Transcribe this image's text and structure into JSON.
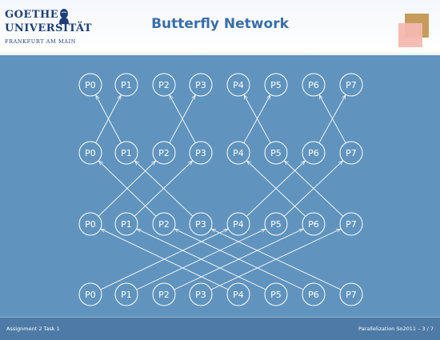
{
  "header": {
    "title": "Butterfly Network",
    "logo": {
      "line1": "GOETHE",
      "line2": "UNIVERSITÄT",
      "line3": "FRANKFURT AM MAIN",
      "icon": "goethe-portrait-icon"
    },
    "accent_colors": [
      "#c69c5a",
      "#f4b8b0"
    ]
  },
  "footer": {
    "left": "Assignment 2 Task 1",
    "right": "Parallelization So2011 – 3 / 7"
  },
  "diagram": {
    "type": "butterfly-network",
    "rows": [
      {
        "nodes": [
          "P0",
          "P1",
          "P2",
          "P3",
          "P4",
          "P5",
          "P6",
          "P7"
        ]
      },
      {
        "nodes": [
          "P0",
          "P1",
          "P2",
          "P3",
          "P4",
          "P5",
          "P6",
          "P7"
        ]
      },
      {
        "nodes": [
          "P0",
          "P1",
          "P2",
          "P3",
          "P4",
          "P5",
          "P6",
          "P7"
        ]
      },
      {
        "nodes": [
          "P0",
          "P1",
          "P2",
          "P3",
          "P4",
          "P5",
          "P6",
          "P7"
        ]
      }
    ],
    "stages": [
      {
        "between_rows": [
          3,
          2
        ],
        "partner_distance": 4
      },
      {
        "between_rows": [
          2,
          1
        ],
        "partner_distance": 2
      },
      {
        "between_rows": [
          1,
          0
        ],
        "partner_distance": 1
      }
    ],
    "background": "#6094be",
    "foreground": "#ffffff"
  }
}
